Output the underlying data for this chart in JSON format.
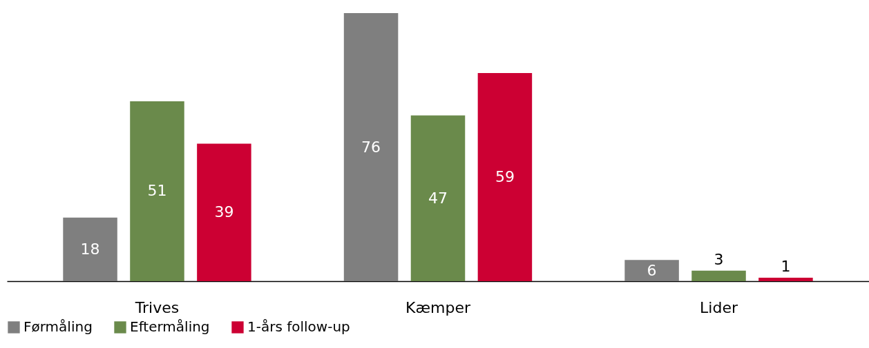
{
  "chart_data": {
    "type": "bar",
    "categories": [
      "Trives",
      "Kæmper",
      "Lider"
    ],
    "series": [
      {
        "name": "Førmåling",
        "color": "#7f7f7f",
        "values": [
          18,
          76,
          6
        ]
      },
      {
        "name": "Eftermåling",
        "color": "#6a8a4b",
        "values": [
          51,
          47,
          3
        ]
      },
      {
        "name": "1-års follow-up",
        "color": "#cc0033",
        "values": [
          39,
          59,
          1
        ]
      }
    ],
    "data_labels": true,
    "legend": "bottom"
  }
}
